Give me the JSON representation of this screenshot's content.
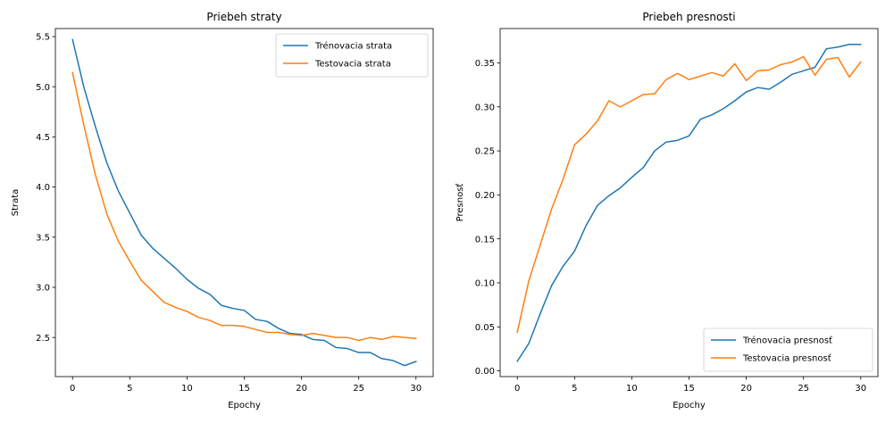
{
  "chart_data": [
    {
      "type": "line",
      "title": "Priebeh straty",
      "xlabel": "Epochy",
      "ylabel": "Strata",
      "xlim": [
        -1.5,
        31.5
      ],
      "ylim": [
        2.11,
        5.58
      ],
      "xticks": [
        0,
        5,
        10,
        15,
        20,
        25,
        30
      ],
      "yticks": [
        2.5,
        3.0,
        3.5,
        4.0,
        4.5,
        5.0,
        5.5
      ],
      "xtick_labels": [
        "0",
        "5",
        "10",
        "15",
        "20",
        "25",
        "30"
      ],
      "ytick_labels": [
        "2.5",
        "3.0",
        "3.5",
        "4.0",
        "4.5",
        "5.0",
        "5.5"
      ],
      "grid": false,
      "legend_position": "top-right",
      "x": [
        0,
        1,
        2,
        3,
        4,
        5,
        6,
        7,
        8,
        9,
        10,
        11,
        12,
        13,
        14,
        15,
        16,
        17,
        18,
        19,
        20,
        21,
        22,
        23,
        24,
        25,
        26,
        27,
        28,
        29,
        30
      ],
      "series": [
        {
          "name": "Trénovacia strata",
          "color": "#1f77b4",
          "values": [
            5.47,
            4.99,
            4.6,
            4.24,
            3.96,
            3.74,
            3.52,
            3.39,
            3.29,
            3.19,
            3.08,
            2.99,
            2.93,
            2.82,
            2.79,
            2.77,
            2.68,
            2.66,
            2.59,
            2.54,
            2.53,
            2.48,
            2.47,
            2.4,
            2.39,
            2.35,
            2.35,
            2.29,
            2.27,
            2.22,
            2.26
          ]
        },
        {
          "name": "Testovacia strata",
          "color": "#ff7f0e",
          "values": [
            5.14,
            4.61,
            4.12,
            3.73,
            3.46,
            3.26,
            3.07,
            2.96,
            2.85,
            2.8,
            2.76,
            2.7,
            2.67,
            2.62,
            2.62,
            2.61,
            2.58,
            2.55,
            2.55,
            2.53,
            2.52,
            2.54,
            2.52,
            2.5,
            2.5,
            2.47,
            2.5,
            2.48,
            2.51,
            2.5,
            2.49
          ]
        }
      ]
    },
    {
      "type": "line",
      "title": "Priebeh presnosti",
      "xlabel": "Epochy",
      "ylabel": "Presnosť",
      "xlim": [
        -1.5,
        31.5
      ],
      "ylim": [
        -0.0065,
        0.389
      ],
      "xticks": [
        0,
        5,
        10,
        15,
        20,
        25,
        30
      ],
      "yticks": [
        0.0,
        0.05,
        0.1,
        0.15,
        0.2,
        0.25,
        0.3,
        0.35
      ],
      "xtick_labels": [
        "0",
        "5",
        "10",
        "15",
        "20",
        "25",
        "30"
      ],
      "ytick_labels": [
        "0.00",
        "0.05",
        "0.10",
        "0.15",
        "0.20",
        "0.25",
        "0.30",
        "0.35"
      ],
      "grid": false,
      "legend_position": "bottom-right",
      "x": [
        0,
        1,
        2,
        3,
        4,
        5,
        6,
        7,
        8,
        9,
        10,
        11,
        12,
        13,
        14,
        15,
        16,
        17,
        18,
        19,
        20,
        21,
        22,
        23,
        24,
        25,
        26,
        27,
        28,
        29,
        30
      ],
      "series": [
        {
          "name": "Trénovacia presnosť",
          "color": "#1f77b4",
          "values": [
            0.011,
            0.031,
            0.065,
            0.097,
            0.119,
            0.136,
            0.165,
            0.188,
            0.199,
            0.208,
            0.22,
            0.231,
            0.25,
            0.26,
            0.262,
            0.267,
            0.286,
            0.291,
            0.298,
            0.307,
            0.317,
            0.322,
            0.32,
            0.328,
            0.337,
            0.341,
            0.345,
            0.366,
            0.368,
            0.371,
            0.371
          ]
        },
        {
          "name": "Testovacia presnosť",
          "color": "#ff7f0e",
          "values": [
            0.044,
            0.102,
            0.143,
            0.184,
            0.218,
            0.257,
            0.269,
            0.284,
            0.307,
            0.3,
            0.307,
            0.314,
            0.315,
            0.331,
            0.338,
            0.331,
            0.335,
            0.339,
            0.335,
            0.349,
            0.33,
            0.341,
            0.342,
            0.348,
            0.351,
            0.357,
            0.336,
            0.354,
            0.356,
            0.334,
            0.351
          ]
        }
      ]
    }
  ]
}
